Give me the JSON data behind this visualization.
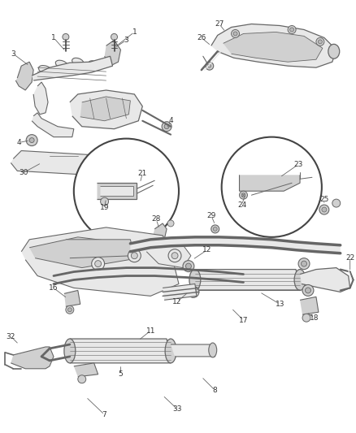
{
  "bg_color": "#ffffff",
  "line_color": "#666666",
  "dark_color": "#444444",
  "fill_light": "#e8e8e8",
  "fill_mid": "#d0d0d0",
  "fill_dark": "#b8b8b8",
  "text_color": "#333333",
  "fig_width": 4.39,
  "fig_height": 5.33,
  "dpi": 100,
  "font_size": 6.5
}
